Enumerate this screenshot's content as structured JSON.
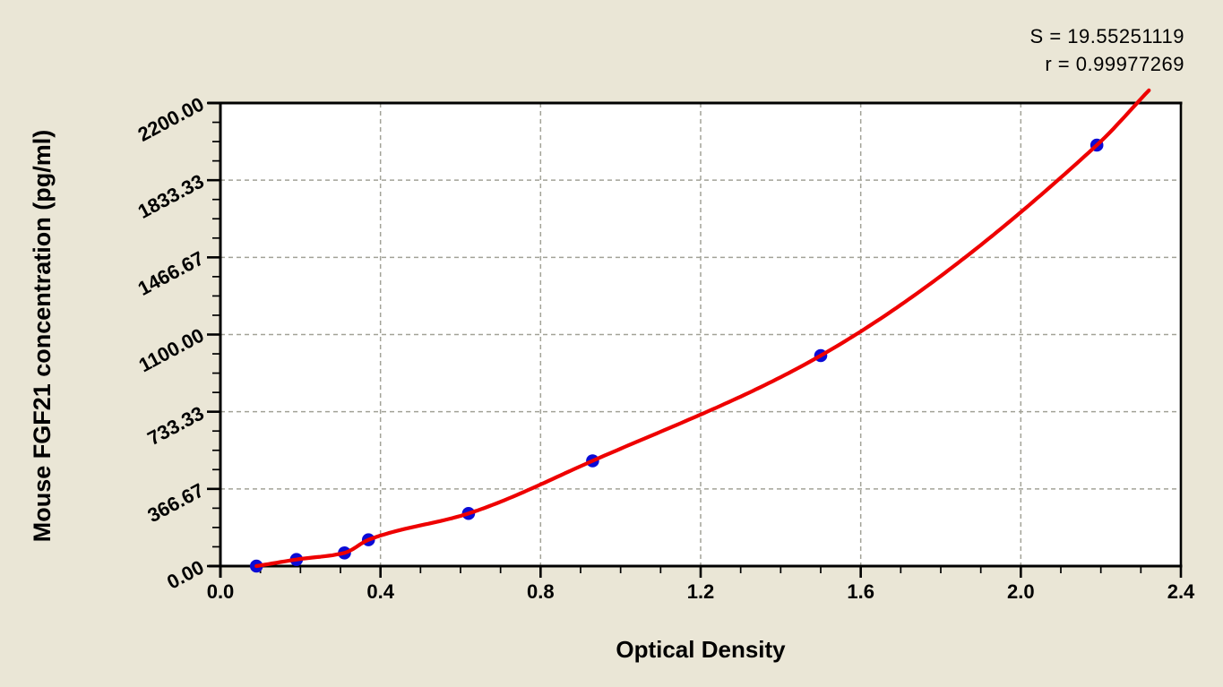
{
  "colors": {
    "background": "#eae6d6",
    "plot_background": "#ffffff",
    "axis": "#000000",
    "grid": "#a2a297",
    "curve": "#ee0000",
    "marker": "#0b0bd6",
    "text": "#000000"
  },
  "chart_data": {
    "type": "scatter",
    "title": "",
    "xlabel": "Optical Density",
    "ylabel": "Mouse FGF21 concentration (pg/ml)",
    "x_ticks": [
      "0.0",
      "0.4",
      "0.8",
      "1.2",
      "1.6",
      "2.0",
      "2.4"
    ],
    "y_ticks": [
      "0.00",
      "366.67",
      "733.33",
      "1100.00",
      "1466.67",
      "1833.33",
      "2200.00"
    ],
    "xlim": [
      0,
      2.4
    ],
    "ylim": [
      0,
      2200
    ],
    "x_major_step": 0.4,
    "x_minor_step": 0.1,
    "y_major_step": 366.67,
    "y_minors_per_major": 3,
    "grid": {
      "show": true,
      "style": "dashed",
      "on": "major"
    },
    "legend": {
      "show": false
    },
    "series": [
      {
        "name": "standard-points",
        "marker": "circle",
        "points": [
          {
            "od": 0.09,
            "conc": 0
          },
          {
            "od": 0.19,
            "conc": 31.2
          },
          {
            "od": 0.31,
            "conc": 62.5
          },
          {
            "od": 0.37,
            "conc": 125
          },
          {
            "od": 0.62,
            "conc": 250
          },
          {
            "od": 0.93,
            "conc": 500
          },
          {
            "od": 1.5,
            "conc": 1000
          },
          {
            "od": 2.19,
            "conc": 2000
          }
        ]
      }
    ],
    "fit_curve": {
      "through_points": true,
      "extend_to": {
        "od": 2.32,
        "conc": 2260
      }
    },
    "annotations": {
      "s": "S = 19.55251119",
      "r": "r = 0.99977269"
    }
  }
}
